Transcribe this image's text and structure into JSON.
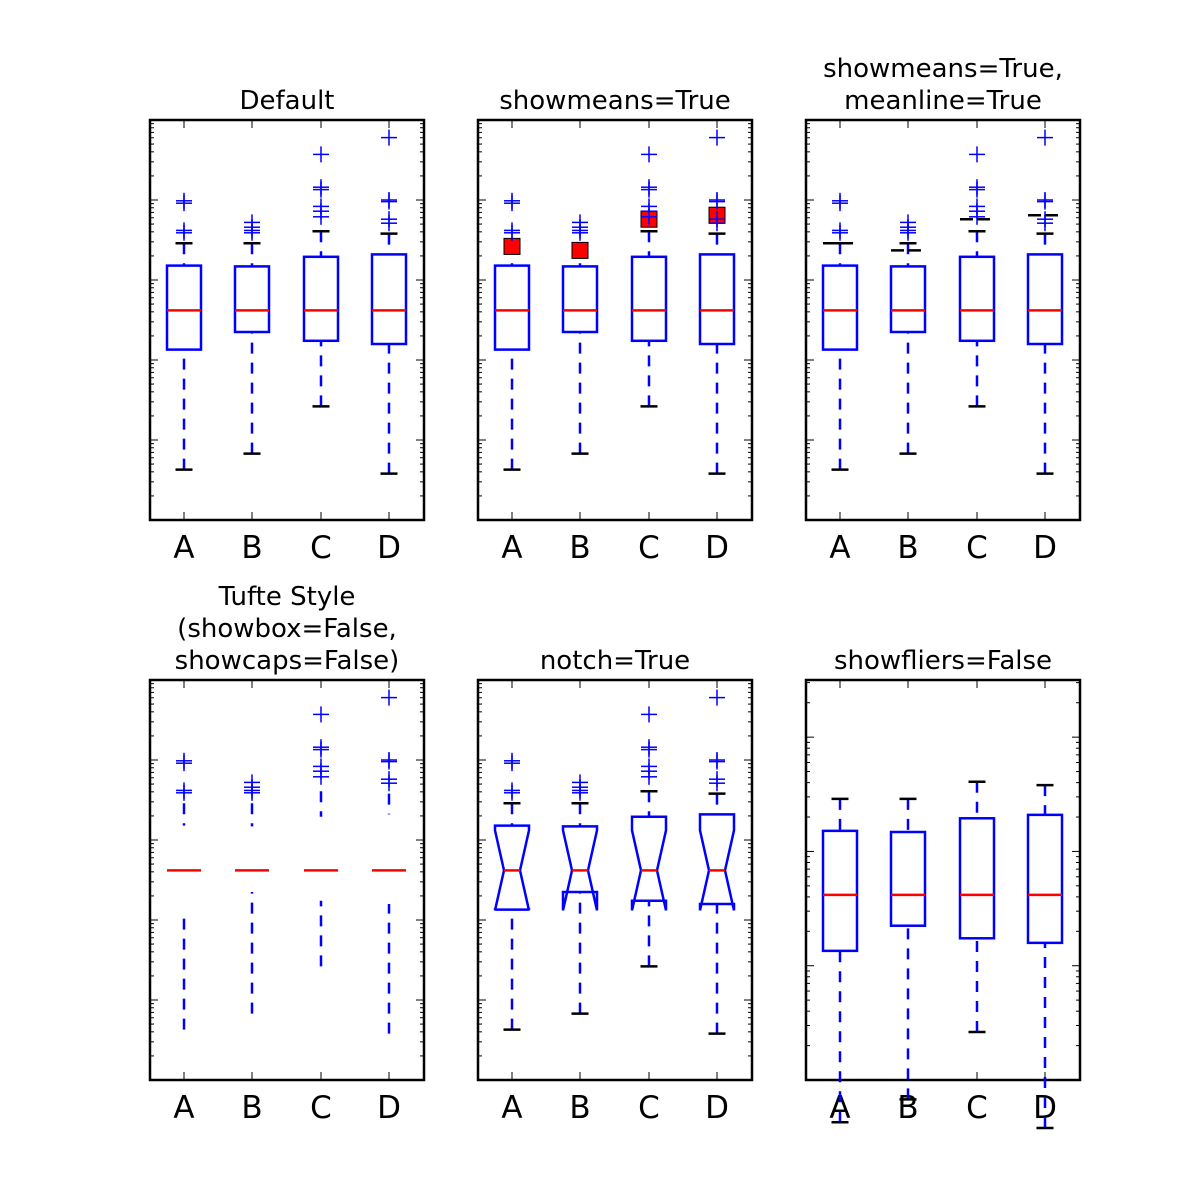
{
  "chart_data": {
    "type": "boxplot",
    "y_scale": "log",
    "y_range_log10": [
      -3.0,
      2.0
    ],
    "categories": [
      "A",
      "B",
      "C",
      "D"
    ],
    "legend": "none",
    "grid": false,
    "colors": {
      "box": "#0000ff",
      "median": "#ff0000",
      "cap": "#000000",
      "flier": "#0000ff",
      "mean_marker_fill": "#ff0000",
      "mean_line": "#000000"
    },
    "stats_log10": {
      "A": {
        "q1": -0.87,
        "median": -0.38,
        "q3": 0.18,
        "lower_whisker": -2.37,
        "upper_whisker": 0.46,
        "mean_marker": 0.42,
        "mean_line": 0.46,
        "fliers": [
          0.99,
          0.96,
          0.62,
          0.59
        ]
      },
      "B": {
        "q1": -0.65,
        "median": -0.38,
        "q3": 0.17,
        "lower_whisker": -2.17,
        "upper_whisker": 0.46,
        "mean_marker": 0.37,
        "mean_line": 0.37,
        "fliers": [
          0.72,
          0.66,
          0.62,
          0.59
        ]
      },
      "C": {
        "q1": -0.76,
        "median": -0.38,
        "q3": 0.29,
        "lower_whisker": -1.58,
        "upper_whisker": 0.61,
        "mean_marker": 0.76,
        "mean_line": 0.76,
        "fliers": [
          1.57,
          1.16,
          1.13,
          0.92,
          0.86,
          0.79
        ]
      },
      "D": {
        "q1": -0.8,
        "median": -0.38,
        "q3": 0.32,
        "lower_whisker": -2.42,
        "upper_whisker": 0.58,
        "mean_marker": 0.81,
        "mean_line": 0.81,
        "fliers": [
          1.78,
          1.0,
          0.98,
          0.76,
          0.71
        ]
      }
    },
    "panels": [
      {
        "title_lines": [
          "Default"
        ],
        "showbox": true,
        "showcaps": true,
        "showfliers": true,
        "notch": false,
        "showmeans": false,
        "meanline": false
      },
      {
        "title_lines": [
          "showmeans=True"
        ],
        "showbox": true,
        "showcaps": true,
        "showfliers": true,
        "notch": false,
        "showmeans": true,
        "meanline": false
      },
      {
        "title_lines": [
          "showmeans=True,",
          "meanline=True"
        ],
        "showbox": true,
        "showcaps": true,
        "showfliers": true,
        "notch": false,
        "showmeans": true,
        "meanline": true
      },
      {
        "title_lines": [
          "Tufte Style",
          "(showbox=False,",
          "showcaps=False)"
        ],
        "showbox": false,
        "showcaps": false,
        "showfliers": true,
        "notch": false,
        "showmeans": false,
        "meanline": false
      },
      {
        "title_lines": [
          "notch=True"
        ],
        "showbox": true,
        "showcaps": true,
        "showfliers": true,
        "notch": true,
        "showmeans": false,
        "meanline": false
      },
      {
        "title_lines": [
          "showfliers=False"
        ],
        "showbox": true,
        "showcaps": true,
        "showfliers": false,
        "notch": false,
        "showmeans": false,
        "meanline": false,
        "y_range_log10": [
          -2.0,
          1.5
        ]
      }
    ]
  }
}
